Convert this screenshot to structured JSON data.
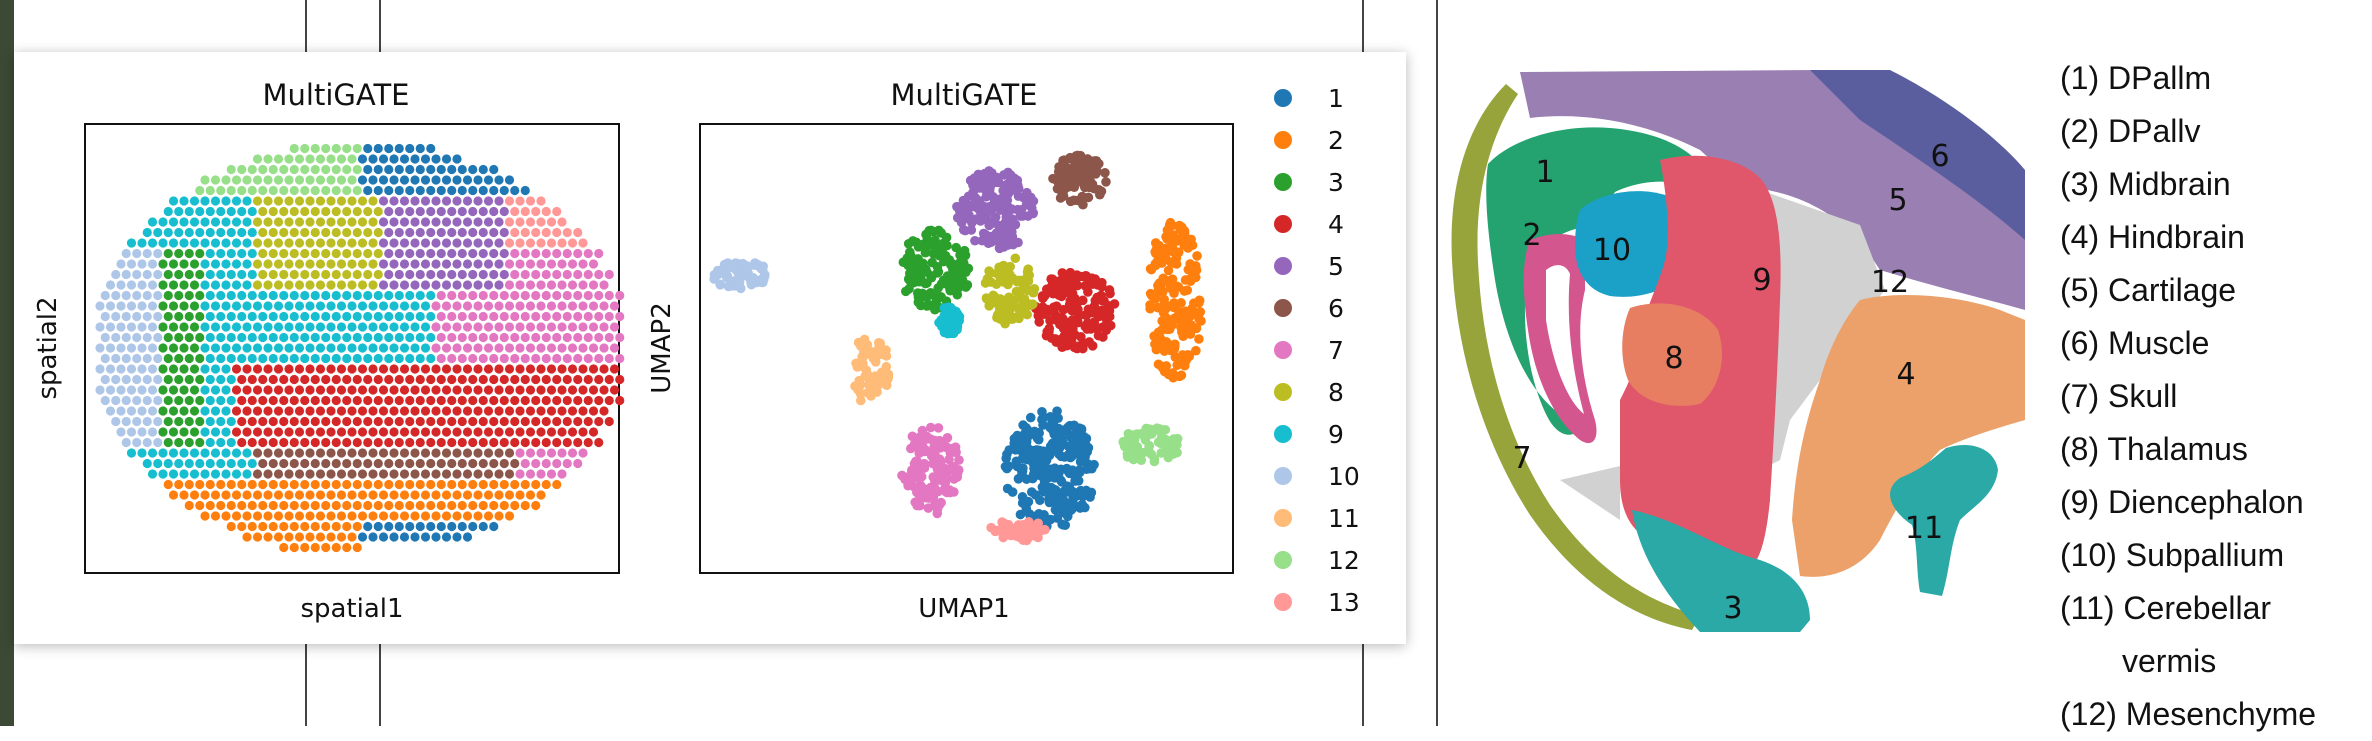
{
  "chart_data": [
    {
      "type": "scatter",
      "title": "MultiGATE",
      "xlabel": "spatial1",
      "ylabel": "spatial2",
      "grid": false,
      "regions": [
        "10",
        "1",
        "2",
        "5",
        "6",
        "7",
        "8",
        "12",
        "13",
        "9",
        "3",
        "4",
        "11"
      ]
    },
    {
      "type": "scatter",
      "title": "MultiGATE",
      "xlabel": "UMAP1",
      "ylabel": "UMAP2",
      "grid": false,
      "legend_position": "right",
      "legend": [
        "1",
        "2",
        "3",
        "4",
        "5",
        "6",
        "7",
        "8",
        "9",
        "10",
        "11",
        "12",
        "13"
      ],
      "colors": [
        "#1f77b4",
        "#ff7f0e",
        "#2ca02c",
        "#d62728",
        "#9467bd",
        "#8c564b",
        "#e377c2",
        "#bcbd22",
        "#17becf",
        "#aec7e8",
        "#ffbb78",
        "#98df8a",
        "#ff9896"
      ]
    },
    {
      "type": "diagram",
      "region_labels": [
        "1",
        "2",
        "3",
        "4",
        "5",
        "6",
        "7",
        "8",
        "9",
        "10",
        "11",
        "12"
      ],
      "legend": [
        "(1) DPallm",
        "(2) DPallv",
        "(3) Midbrain",
        "(4) Hindbrain",
        "(5) Cartilage",
        "(6) Muscle",
        "(7) Skull",
        "(8) Thalamus",
        "(9) Diencephalon",
        "(10) Subpallium",
        "(11) Cerebellar",
        "vermis",
        "(12) Mesenchyme"
      ]
    }
  ]
}
